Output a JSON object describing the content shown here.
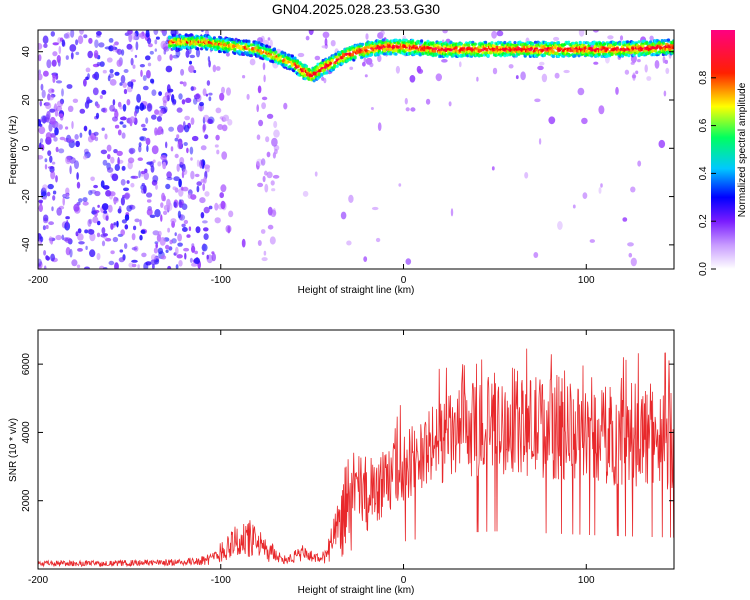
{
  "title": "GN04.2025.028.23.53.G30",
  "chart_data": [
    {
      "type": "heatmap",
      "xlabel": "Height of straight line (km)",
      "ylabel": "Frequency (Hz)",
      "xlim": [
        -200,
        148
      ],
      "ylim": [
        -50,
        49
      ],
      "x_ticks": [
        -200,
        -100,
        0,
        100
      ],
      "y_ticks": [
        -40,
        -20,
        0,
        20,
        40
      ],
      "colorbar": {
        "label": "Normalized spectral amplitude",
        "range": [
          0,
          1
        ],
        "ticks": [
          "0.0",
          "0.2",
          "0.4",
          "0.6",
          "0.8"
        ],
        "colors": [
          "#ffffff",
          "#a040ff",
          "#0000ff",
          "#00ffff",
          "#00ff00",
          "#ffff00",
          "#ff0000",
          "#ff0080"
        ]
      },
      "ridge": {
        "x": [
          -125,
          -110,
          -100,
          -90,
          -80,
          -70,
          -60,
          -55,
          -50,
          -45,
          -40,
          -30,
          -20,
          -10,
          0,
          20,
          40,
          60,
          80,
          100,
          120,
          148
        ],
        "y": [
          44,
          44,
          43,
          42,
          41,
          38,
          35,
          32,
          30,
          33,
          35,
          39,
          41,
          42,
          42,
          41,
          41,
          41,
          41,
          41,
          41,
          42
        ]
      },
      "grid": false
    },
    {
      "type": "line",
      "xlabel": "Height of straight line (km)",
      "ylabel": "SNR (10 * v/v)",
      "xlim": [
        -200,
        148
      ],
      "ylim": [
        0,
        7000
      ],
      "x_ticks": [
        -200,
        -100,
        0,
        100
      ],
      "y_ticks": [
        2000,
        4000,
        6000
      ],
      "series": [
        {
          "color": "#e8282b",
          "envelope_x": [
            -200,
            -160,
            -120,
            -105,
            -95,
            -85,
            -75,
            -65,
            -55,
            -45,
            -38,
            -30,
            -20,
            -10,
            0,
            20,
            40,
            60,
            80,
            100,
            120,
            148
          ],
          "envelope_low": [
            80,
            80,
            100,
            120,
            250,
            300,
            200,
            150,
            200,
            150,
            200,
            400,
            1000,
            1500,
            2000,
            2500,
            2700,
            2800,
            2600,
            2500,
            2400,
            2300
          ],
          "envelope_high": [
            250,
            250,
            300,
            450,
            1200,
            1500,
            900,
            400,
            700,
            400,
            1500,
            3500,
            3300,
            3500,
            4000,
            5000,
            5500,
            5500,
            5800,
            5300,
            5500,
            5500
          ]
        }
      ],
      "grid": false
    }
  ]
}
